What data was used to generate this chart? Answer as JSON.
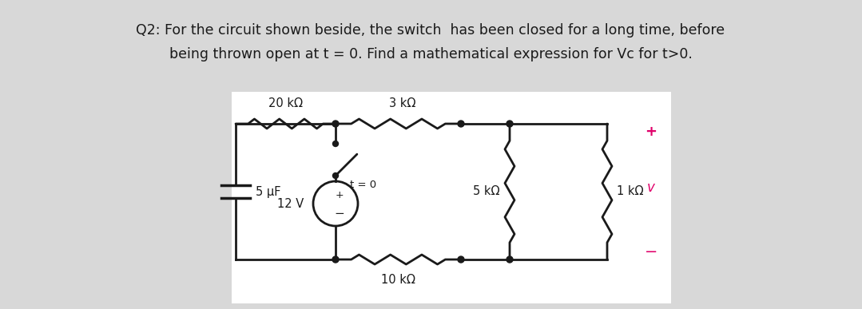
{
  "title_line1": "Q2: For the circuit shown beside, the switch  has been closed for a long time, before",
  "title_line2": "being thrown open at t = 0. Find a mathematical expression for Vc for t>0.",
  "bg_color": "#d8d8d8",
  "circuit_bg": "#ffffff",
  "text_color": "#1a1a1a",
  "pink_color": "#e0006a",
  "title_fontsize": 12.5,
  "label_fontsize": 10.5,
  "small_fontsize": 9.5,
  "resistor_20k": "20 kΩ",
  "resistor_3k": "3 kΩ",
  "resistor_5k": "5 kΩ",
  "resistor_1k": "1 kΩ",
  "resistor_10k": "10 kΩ",
  "capacitor_label": "5 μF",
  "voltage_label": "12 V",
  "switch_label": "t = 0",
  "v_label": "v"
}
